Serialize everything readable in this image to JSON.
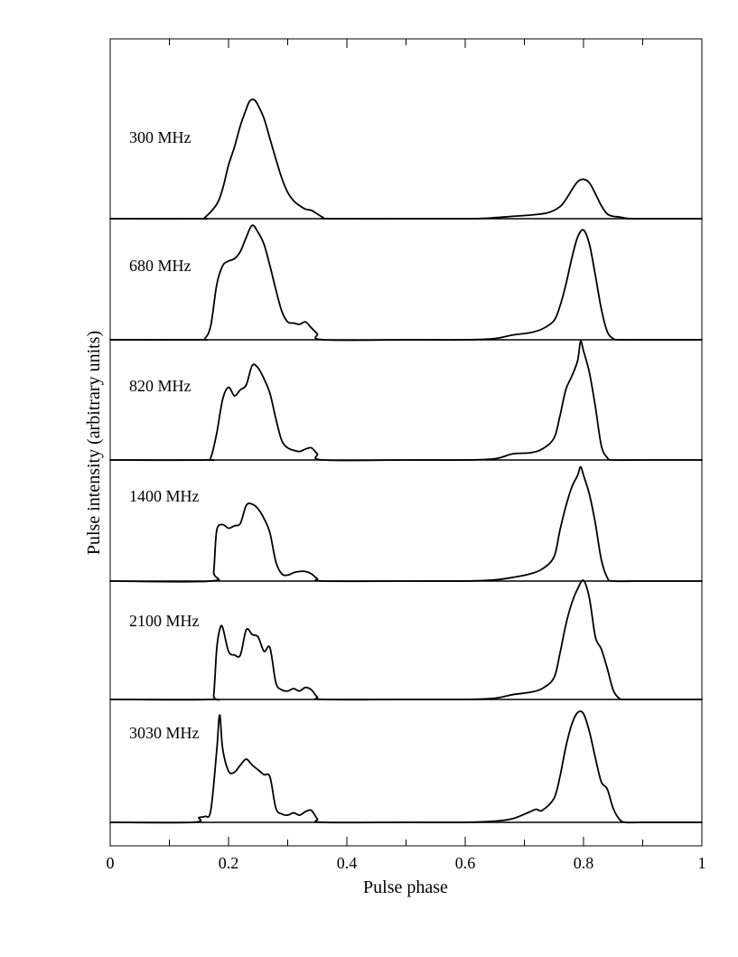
{
  "chart_data": {
    "type": "line",
    "xlabel": "Pulse phase",
    "ylabel": "Pulse intensity (arbitrary units)",
    "xlim": [
      0,
      1
    ],
    "x_tick_labels": [
      {
        "value": 0,
        "label": "0"
      },
      {
        "value": 0.2,
        "label": "0.2"
      },
      {
        "value": 0.4,
        "label": "0.4"
      },
      {
        "value": 0.6,
        "label": "0.6"
      },
      {
        "value": 0.8,
        "label": "0.8"
      },
      {
        "value": 1,
        "label": "1"
      }
    ],
    "x_minor_tick_values": [
      0.1,
      0.3,
      0.5,
      0.7,
      0.9
    ],
    "grid": false,
    "series": [
      {
        "name": "300 MHz",
        "points": [
          [
            0.0,
            0.0
          ],
          [
            0.15,
            0.0
          ],
          [
            0.16,
            0.01
          ],
          [
            0.18,
            0.12
          ],
          [
            0.19,
            0.25
          ],
          [
            0.2,
            0.45
          ],
          [
            0.21,
            0.6
          ],
          [
            0.22,
            0.78
          ],
          [
            0.23,
            0.92
          ],
          [
            0.235,
            0.98
          ],
          [
            0.24,
            1.0
          ],
          [
            0.245,
            0.99
          ],
          [
            0.25,
            0.95
          ],
          [
            0.26,
            0.84
          ],
          [
            0.27,
            0.67
          ],
          [
            0.28,
            0.5
          ],
          [
            0.29,
            0.34
          ],
          [
            0.3,
            0.22
          ],
          [
            0.31,
            0.15
          ],
          [
            0.32,
            0.11
          ],
          [
            0.33,
            0.08
          ],
          [
            0.34,
            0.07
          ],
          [
            0.35,
            0.04
          ],
          [
            0.36,
            0.01
          ],
          [
            0.37,
            0.0
          ],
          [
            0.5,
            0.0
          ],
          [
            0.6,
            0.0
          ],
          [
            0.64,
            0.005
          ],
          [
            0.68,
            0.02
          ],
          [
            0.71,
            0.03
          ],
          [
            0.74,
            0.05
          ],
          [
            0.76,
            0.1
          ],
          [
            0.77,
            0.16
          ],
          [
            0.78,
            0.24
          ],
          [
            0.79,
            0.31
          ],
          [
            0.8,
            0.33
          ],
          [
            0.81,
            0.3
          ],
          [
            0.82,
            0.21
          ],
          [
            0.83,
            0.11
          ],
          [
            0.84,
            0.04
          ],
          [
            0.85,
            0.02
          ],
          [
            0.86,
            0.015
          ],
          [
            0.87,
            0.005
          ],
          [
            0.88,
            0.0
          ],
          [
            0.9,
            0.0
          ],
          [
            1.0,
            0.0
          ]
        ]
      },
      {
        "name": "680 MHz",
        "points": [
          [
            0.0,
            0.0
          ],
          [
            0.15,
            0.0
          ],
          [
            0.16,
            0.01
          ],
          [
            0.17,
            0.12
          ],
          [
            0.18,
            0.46
          ],
          [
            0.19,
            0.62
          ],
          [
            0.2,
            0.66
          ],
          [
            0.21,
            0.68
          ],
          [
            0.22,
            0.74
          ],
          [
            0.23,
            0.86
          ],
          [
            0.24,
            0.96
          ],
          [
            0.25,
            0.9
          ],
          [
            0.26,
            0.8
          ],
          [
            0.27,
            0.62
          ],
          [
            0.28,
            0.42
          ],
          [
            0.29,
            0.24
          ],
          [
            0.3,
            0.15
          ],
          [
            0.31,
            0.14
          ],
          [
            0.32,
            0.13
          ],
          [
            0.33,
            0.15
          ],
          [
            0.34,
            0.1
          ],
          [
            0.35,
            0.05
          ],
          [
            0.36,
            0.0
          ],
          [
            0.5,
            0.0
          ],
          [
            0.6,
            0.0
          ],
          [
            0.65,
            0.01
          ],
          [
            0.68,
            0.04
          ],
          [
            0.71,
            0.06
          ],
          [
            0.73,
            0.09
          ],
          [
            0.75,
            0.16
          ],
          [
            0.76,
            0.28
          ],
          [
            0.77,
            0.46
          ],
          [
            0.78,
            0.68
          ],
          [
            0.79,
            0.86
          ],
          [
            0.8,
            0.92
          ],
          [
            0.81,
            0.8
          ],
          [
            0.82,
            0.54
          ],
          [
            0.83,
            0.26
          ],
          [
            0.84,
            0.07
          ],
          [
            0.85,
            0.01
          ],
          [
            0.86,
            0.0
          ],
          [
            0.9,
            0.0
          ],
          [
            1.0,
            0.0
          ]
        ]
      },
      {
        "name": "820 MHz",
        "points": [
          [
            0.0,
            0.0
          ],
          [
            0.16,
            0.0
          ],
          [
            0.17,
            0.02
          ],
          [
            0.18,
            0.22
          ],
          [
            0.19,
            0.5
          ],
          [
            0.2,
            0.6
          ],
          [
            0.21,
            0.53
          ],
          [
            0.22,
            0.58
          ],
          [
            0.23,
            0.62
          ],
          [
            0.24,
            0.78
          ],
          [
            0.25,
            0.76
          ],
          [
            0.26,
            0.67
          ],
          [
            0.27,
            0.55
          ],
          [
            0.28,
            0.34
          ],
          [
            0.29,
            0.16
          ],
          [
            0.3,
            0.1
          ],
          [
            0.31,
            0.08
          ],
          [
            0.32,
            0.07
          ],
          [
            0.33,
            0.09
          ],
          [
            0.34,
            0.1
          ],
          [
            0.35,
            0.05
          ],
          [
            0.36,
            0.0
          ],
          [
            0.5,
            0.0
          ],
          [
            0.6,
            0.0
          ],
          [
            0.65,
            0.01
          ],
          [
            0.68,
            0.05
          ],
          [
            0.71,
            0.06
          ],
          [
            0.73,
            0.09
          ],
          [
            0.75,
            0.18
          ],
          [
            0.76,
            0.36
          ],
          [
            0.77,
            0.58
          ],
          [
            0.78,
            0.69
          ],
          [
            0.79,
            0.82
          ],
          [
            0.795,
            0.98
          ],
          [
            0.8,
            0.9
          ],
          [
            0.81,
            0.72
          ],
          [
            0.82,
            0.44
          ],
          [
            0.83,
            0.12
          ],
          [
            0.84,
            0.02
          ],
          [
            0.85,
            0.0
          ],
          [
            0.9,
            0.0
          ],
          [
            1.0,
            0.0
          ]
        ]
      },
      {
        "name": "1400 MHz",
        "points": [
          [
            0.0,
            0.0
          ],
          [
            0.17,
            0.0
          ],
          [
            0.175,
            0.08
          ],
          [
            0.18,
            0.42
          ],
          [
            0.19,
            0.47
          ],
          [
            0.2,
            0.44
          ],
          [
            0.21,
            0.46
          ],
          [
            0.22,
            0.48
          ],
          [
            0.23,
            0.63
          ],
          [
            0.24,
            0.64
          ],
          [
            0.25,
            0.6
          ],
          [
            0.26,
            0.52
          ],
          [
            0.27,
            0.4
          ],
          [
            0.28,
            0.16
          ],
          [
            0.29,
            0.06
          ],
          [
            0.3,
            0.05
          ],
          [
            0.31,
            0.07
          ],
          [
            0.32,
            0.08
          ],
          [
            0.33,
            0.08
          ],
          [
            0.34,
            0.06
          ],
          [
            0.35,
            0.02
          ],
          [
            0.36,
            0.0
          ],
          [
            0.5,
            0.0
          ],
          [
            0.6,
            0.0
          ],
          [
            0.65,
            0.01
          ],
          [
            0.68,
            0.03
          ],
          [
            0.71,
            0.06
          ],
          [
            0.73,
            0.1
          ],
          [
            0.75,
            0.2
          ],
          [
            0.76,
            0.42
          ],
          [
            0.77,
            0.62
          ],
          [
            0.78,
            0.78
          ],
          [
            0.79,
            0.88
          ],
          [
            0.795,
            0.95
          ],
          [
            0.8,
            0.88
          ],
          [
            0.81,
            0.72
          ],
          [
            0.82,
            0.48
          ],
          [
            0.83,
            0.18
          ],
          [
            0.84,
            0.03
          ],
          [
            0.85,
            0.0
          ],
          [
            0.9,
            0.0
          ],
          [
            1.0,
            0.0
          ]
        ]
      },
      {
        "name": "2100 MHz",
        "points": [
          [
            0.0,
            0.0
          ],
          [
            0.17,
            0.0
          ],
          [
            0.175,
            0.04
          ],
          [
            0.18,
            0.42
          ],
          [
            0.185,
            0.58
          ],
          [
            0.19,
            0.6
          ],
          [
            0.2,
            0.4
          ],
          [
            0.21,
            0.37
          ],
          [
            0.22,
            0.37
          ],
          [
            0.23,
            0.58
          ],
          [
            0.24,
            0.54
          ],
          [
            0.25,
            0.52
          ],
          [
            0.26,
            0.4
          ],
          [
            0.27,
            0.43
          ],
          [
            0.28,
            0.14
          ],
          [
            0.29,
            0.08
          ],
          [
            0.3,
            0.07
          ],
          [
            0.31,
            0.09
          ],
          [
            0.32,
            0.07
          ],
          [
            0.33,
            0.1
          ],
          [
            0.34,
            0.08
          ],
          [
            0.35,
            0.02
          ],
          [
            0.36,
            0.0
          ],
          [
            0.5,
            0.0
          ],
          [
            0.6,
            0.0
          ],
          [
            0.65,
            0.01
          ],
          [
            0.68,
            0.04
          ],
          [
            0.71,
            0.06
          ],
          [
            0.73,
            0.09
          ],
          [
            0.75,
            0.18
          ],
          [
            0.76,
            0.38
          ],
          [
            0.77,
            0.62
          ],
          [
            0.78,
            0.8
          ],
          [
            0.79,
            0.92
          ],
          [
            0.8,
            0.99
          ],
          [
            0.81,
            0.84
          ],
          [
            0.82,
            0.52
          ],
          [
            0.83,
            0.42
          ],
          [
            0.84,
            0.26
          ],
          [
            0.85,
            0.08
          ],
          [
            0.86,
            0.01
          ],
          [
            0.87,
            0.0
          ],
          [
            0.9,
            0.0
          ],
          [
            1.0,
            0.0
          ]
        ]
      },
      {
        "name": "3030 MHz",
        "points": [
          [
            0.0,
            0.0
          ],
          [
            0.14,
            0.0
          ],
          [
            0.15,
            0.04
          ],
          [
            0.16,
            0.05
          ],
          [
            0.17,
            0.1
          ],
          [
            0.18,
            0.6
          ],
          [
            0.185,
            0.9
          ],
          [
            0.19,
            0.62
          ],
          [
            0.2,
            0.43
          ],
          [
            0.21,
            0.42
          ],
          [
            0.22,
            0.48
          ],
          [
            0.23,
            0.53
          ],
          [
            0.24,
            0.48
          ],
          [
            0.25,
            0.44
          ],
          [
            0.26,
            0.4
          ],
          [
            0.27,
            0.38
          ],
          [
            0.28,
            0.12
          ],
          [
            0.29,
            0.07
          ],
          [
            0.3,
            0.06
          ],
          [
            0.31,
            0.08
          ],
          [
            0.32,
            0.06
          ],
          [
            0.33,
            0.09
          ],
          [
            0.34,
            0.1
          ],
          [
            0.35,
            0.03
          ],
          [
            0.36,
            0.0
          ],
          [
            0.5,
            0.0
          ],
          [
            0.6,
            0.0
          ],
          [
            0.65,
            0.01
          ],
          [
            0.68,
            0.03
          ],
          [
            0.71,
            0.09
          ],
          [
            0.72,
            0.11
          ],
          [
            0.73,
            0.1
          ],
          [
            0.75,
            0.2
          ],
          [
            0.76,
            0.38
          ],
          [
            0.77,
            0.63
          ],
          [
            0.78,
            0.82
          ],
          [
            0.79,
            0.92
          ],
          [
            0.8,
            0.91
          ],
          [
            0.81,
            0.76
          ],
          [
            0.82,
            0.54
          ],
          [
            0.83,
            0.34
          ],
          [
            0.84,
            0.28
          ],
          [
            0.85,
            0.12
          ],
          [
            0.86,
            0.03
          ],
          [
            0.87,
            0.0
          ],
          [
            0.9,
            0.0
          ],
          [
            1.0,
            0.0
          ]
        ]
      }
    ]
  }
}
